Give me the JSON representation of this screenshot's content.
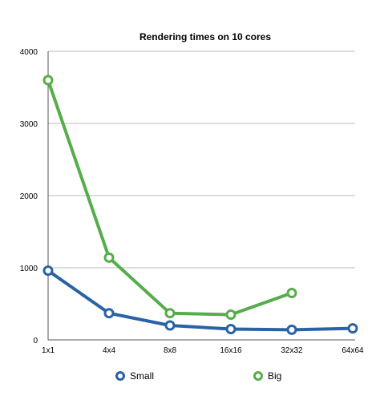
{
  "chart_data": {
    "type": "line",
    "title": "Rendering times on 10 cores",
    "xlabel": "",
    "ylabel": "",
    "categories": [
      "1x1",
      "4x4",
      "8x8",
      "16x16",
      "32x32",
      "64x64"
    ],
    "y_ticks": [
      "0",
      "1000",
      "2000",
      "3000",
      "4000"
    ],
    "ylim": [
      0,
      4000
    ],
    "grid": true,
    "legend_position": "bottom",
    "series": [
      {
        "name": "Small",
        "color": "#2a62a6",
        "values": [
          960,
          370,
          200,
          150,
          140,
          160
        ]
      },
      {
        "name": "Big",
        "color": "#57ac4c",
        "values": [
          3600,
          1140,
          370,
          350,
          650,
          null
        ]
      }
    ]
  }
}
